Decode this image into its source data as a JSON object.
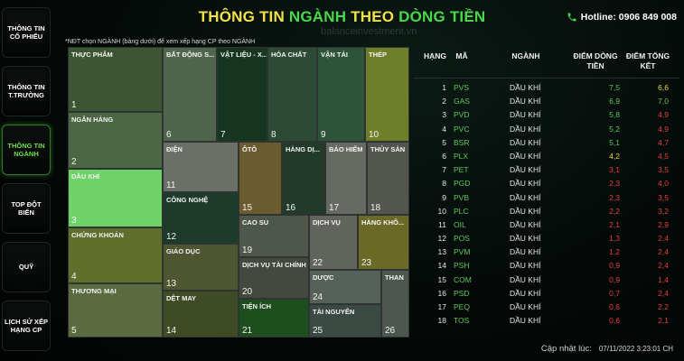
{
  "sidebar": {
    "items": [
      {
        "label": "THÔNG TIN CỔ PHIẾU",
        "active": false
      },
      {
        "label": "THÔNG TIN T.TRƯỜNG",
        "active": false
      },
      {
        "label": "THÔNG TIN NGÀNH",
        "active": true
      },
      {
        "label": "TOP ĐỘT BIẾN",
        "active": false
      },
      {
        "label": "QUỸ",
        "active": false
      },
      {
        "label": "LỊCH SỬ XẾP HẠNG CP",
        "active": false
      }
    ]
  },
  "header": {
    "title_part1": "THÔNG TIN ",
    "title_part2": "NGÀNH",
    "title_part3": " THEO ",
    "title_part4": "DÒNG TIỀN",
    "watermark": "balanceinvestment.vn",
    "hotline": "Hotline: 0906 849 008",
    "note": "*NĐT chọn NGÀNH (bảng dưới) để xem xếp hạng CP theo NGÀNH"
  },
  "treemap": {
    "cells": [
      {
        "label": "THỰC PHẨM",
        "num": "1",
        "color": "#3c5532"
      },
      {
        "label": "NGÂN HÀNG",
        "num": "2",
        "color": "#4b6744"
      },
      {
        "label": "DẦU KHÍ",
        "num": "3",
        "color": "#6fd268"
      },
      {
        "label": "CHỨNG KHOÁN",
        "num": "4",
        "color": "#60702c"
      },
      {
        "label": "THƯƠNG MẠI",
        "num": "5",
        "color": "#5b6b3f"
      },
      {
        "label": "BẤT ĐỘNG S...",
        "num": "6",
        "color": "#50664c"
      },
      {
        "label": "VẬT LIỆU - X...",
        "num": "7",
        "color": "#173622"
      },
      {
        "label": "HÓA CHẤT",
        "num": "8",
        "color": "#2c4a35"
      },
      {
        "label": "VẬN TẢI",
        "num": "9",
        "color": "#2d5439"
      },
      {
        "label": "THÉP",
        "num": "10",
        "color": "#6f7e28"
      },
      {
        "label": "ĐIỆN",
        "num": "11",
        "color": "#6b7066"
      },
      {
        "label": "CÔNG NGHỆ",
        "num": "12",
        "color": "#1d3b2a"
      },
      {
        "label": "GIÁO DỤC",
        "num": "13",
        "color": "#4e5531"
      },
      {
        "label": "DỆT MAY",
        "num": "14",
        "color": "#3e4b25"
      },
      {
        "label": "ÔTÔ",
        "num": "15",
        "color": "#6b5b2f"
      },
      {
        "label": "HÀNG DỊ...",
        "num": "16",
        "color": "#223a2a"
      },
      {
        "label": "BẢO HIỂM",
        "num": "17",
        "color": "#666a62"
      },
      {
        "label": "THỦY SẢN",
        "num": "18",
        "color": "#52564f"
      },
      {
        "label": "CAO SU",
        "num": "19",
        "color": "#4f564b"
      },
      {
        "label": "DỊCH VỤ TÀI CHÍNH",
        "num": "20",
        "color": "#44493f"
      },
      {
        "label": "TIỆN ÍCH",
        "num": "21",
        "color": "#1e4e1e"
      },
      {
        "label": "DỊCH VỤ",
        "num": "22",
        "color": "#60645c"
      },
      {
        "label": "HÀNG KHÔ...",
        "num": "23",
        "color": "#6a6a26"
      },
      {
        "label": "DƯỢC",
        "num": "24",
        "color": "#56615a"
      },
      {
        "label": "TÀI NGUYÊN",
        "num": "25",
        "color": "#3a4a43"
      },
      {
        "label": "THAN",
        "num": "26",
        "color": "#4e5650"
      }
    ]
  },
  "table": {
    "headers": {
      "rank": "HẠNG",
      "code": "MÃ",
      "sector": "NGÀNH",
      "flow": "ĐIỂM DÒNG TIỀN",
      "total": "ĐIỂM TỔNG KẾT"
    },
    "rows": [
      {
        "rank": "1",
        "code": "PVS",
        "sector": "DẦU KHÍ",
        "flow": "7,5",
        "flow_color": "#5ec85a",
        "total": "6,6",
        "total_color": "#e8d84a"
      },
      {
        "rank": "2",
        "code": "GAS",
        "sector": "DẦU KHÍ",
        "flow": "6,9",
        "flow_color": "#5ec85a",
        "total": "7,0",
        "total_color": "#5ec85a"
      },
      {
        "rank": "3",
        "code": "PVD",
        "sector": "DẦU KHÍ",
        "flow": "5,8",
        "flow_color": "#5ec85a",
        "total": "4,9",
        "total_color": "#e04040"
      },
      {
        "rank": "4",
        "code": "PVC",
        "sector": "DẦU KHÍ",
        "flow": "5,2",
        "flow_color": "#5ec85a",
        "total": "4,9",
        "total_color": "#e04040"
      },
      {
        "rank": "5",
        "code": "BSR",
        "sector": "DẦU KHÍ",
        "flow": "5,1",
        "flow_color": "#5ec85a",
        "total": "4,7",
        "total_color": "#e04040"
      },
      {
        "rank": "6",
        "code": "PLX",
        "sector": "DẦU KHÍ",
        "flow": "4,2",
        "flow_color": "#e8d84a",
        "total": "4,5",
        "total_color": "#e04040"
      },
      {
        "rank": "7",
        "code": "PET",
        "sector": "DẦU KHÍ",
        "flow": "3,1",
        "flow_color": "#e04040",
        "total": "3,5",
        "total_color": "#e04040"
      },
      {
        "rank": "8",
        "code": "PGD",
        "sector": "DẦU KHÍ",
        "flow": "2,3",
        "flow_color": "#e04040",
        "total": "4,0",
        "total_color": "#e04040"
      },
      {
        "rank": "9",
        "code": "PVB",
        "sector": "DẦU KHÍ",
        "flow": "2,3",
        "flow_color": "#e04040",
        "total": "3,5",
        "total_color": "#e04040"
      },
      {
        "rank": "10",
        "code": "PLC",
        "sector": "DẦU KHÍ",
        "flow": "2,2",
        "flow_color": "#e04040",
        "total": "3,2",
        "total_color": "#e04040"
      },
      {
        "rank": "11",
        "code": "OIL",
        "sector": "DẦU KHÍ",
        "flow": "2,1",
        "flow_color": "#e04040",
        "total": "2,9",
        "total_color": "#e04040"
      },
      {
        "rank": "12",
        "code": "POS",
        "sector": "DẦU KHÍ",
        "flow": "1,3",
        "flow_color": "#e04040",
        "total": "2,4",
        "total_color": "#e04040"
      },
      {
        "rank": "13",
        "code": "PVM",
        "sector": "DẦU KHÍ",
        "flow": "1,2",
        "flow_color": "#e04040",
        "total": "2,4",
        "total_color": "#e04040"
      },
      {
        "rank": "14",
        "code": "PSH",
        "sector": "DẦU KHÍ",
        "flow": "0,9",
        "flow_color": "#e04040",
        "total": "2,4",
        "total_color": "#e04040"
      },
      {
        "rank": "15",
        "code": "COM",
        "sector": "DẦU KHÍ",
        "flow": "0,9",
        "flow_color": "#e04040",
        "total": "1,4",
        "total_color": "#e04040"
      },
      {
        "rank": "16",
        "code": "PSD",
        "sector": "DẦU KHÍ",
        "flow": "0,7",
        "flow_color": "#e04040",
        "total": "2,4",
        "total_color": "#e04040"
      },
      {
        "rank": "17",
        "code": "PEQ",
        "sector": "DẦU KHÍ",
        "flow": "0,6",
        "flow_color": "#e04040",
        "total": "2,2",
        "total_color": "#e04040"
      },
      {
        "rank": "18",
        "code": "TOS",
        "sector": "DẦU KHÍ",
        "flow": "0,6",
        "flow_color": "#e04040",
        "total": "2,1",
        "total_color": "#e04040"
      }
    ]
  },
  "footer": {
    "updated_label": "Cập nhật lúc:",
    "updated_value": "07/11/2022 3:23:01 CH"
  }
}
